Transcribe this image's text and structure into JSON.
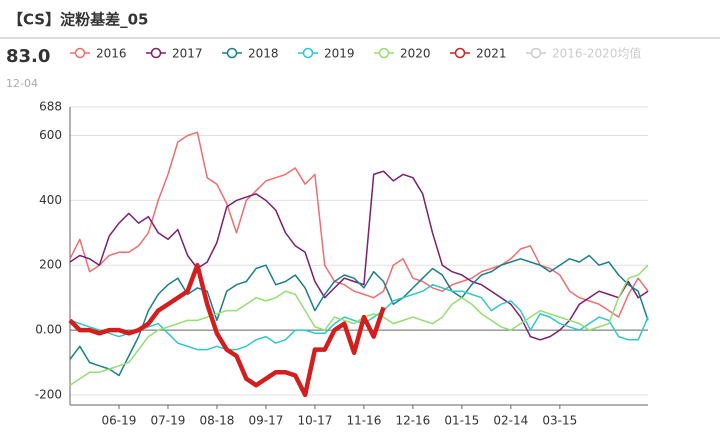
{
  "chart_data": {
    "type": "line",
    "title": "【CS】淀粉基差_05",
    "latest": {
      "value": 83,
      "label": "83.0"
    },
    "latest_date": "12-04",
    "categories": [
      null,
      null,
      null,
      null,
      null,
      "06-19",
      null,
      null,
      null,
      null,
      "07-19",
      null,
      null,
      null,
      null,
      "08-18",
      null,
      null,
      null,
      null,
      "09-17",
      null,
      null,
      null,
      null,
      "10-17",
      null,
      null,
      null,
      null,
      "11-16",
      null,
      null,
      null,
      null,
      "12-16",
      null,
      null,
      null,
      null,
      "01-15",
      null,
      null,
      null,
      null,
      "02-14",
      null,
      null,
      null,
      null,
      "03-15",
      null,
      null,
      null,
      null,
      null,
      null,
      null,
      null,
      null
    ],
    "ylim": [
      -231,
      688
    ],
    "yticks": [
      -200,
      {
        "value": 0,
        "label": "0.00"
      },
      200,
      400,
      600,
      688
    ],
    "grid": true,
    "legend_disabled": [
      "2016-2020均值"
    ],
    "series": [
      {
        "name": "2016",
        "color": "#f26d6d",
        "width": 1.5,
        "values": [
          220,
          280,
          180,
          200,
          230,
          240,
          240,
          260,
          300,
          400,
          480,
          580,
          600,
          610,
          470,
          450,
          390,
          300,
          400,
          430,
          460,
          470,
          480,
          500,
          450,
          480,
          200,
          150,
          140,
          120,
          110,
          100,
          120,
          200,
          220,
          160,
          150,
          130,
          120,
          140,
          150,
          160,
          180,
          190,
          200,
          220,
          250,
          260,
          200,
          190,
          170,
          120,
          100,
          90,
          80,
          60,
          40,
          110,
          160,
          120
        ]
      },
      {
        "name": "2017",
        "color": "#7d1e6e",
        "width": 1.5,
        "values": [
          210,
          230,
          220,
          200,
          290,
          330,
          360,
          330,
          350,
          300,
          280,
          310,
          230,
          190,
          210,
          270,
          380,
          400,
          410,
          420,
          400,
          370,
          300,
          260,
          240,
          150,
          100,
          130,
          160,
          150,
          140,
          480,
          490,
          460,
          480,
          470,
          420,
          300,
          200,
          180,
          170,
          150,
          140,
          120,
          100,
          80,
          40,
          -20,
          -30,
          -20,
          0,
          30,
          80,
          100,
          120,
          110,
          100,
          150,
          100,
          120
        ]
      },
      {
        "name": "2018",
        "color": "#1b7f88",
        "width": 1.5,
        "values": [
          -90,
          -50,
          -100,
          -110,
          -120,
          -140,
          -80,
          -20,
          60,
          110,
          140,
          160,
          110,
          130,
          120,
          30,
          120,
          140,
          150,
          190,
          200,
          140,
          150,
          170,
          130,
          60,
          110,
          150,
          170,
          160,
          130,
          180,
          150,
          80,
          100,
          130,
          160,
          190,
          170,
          120,
          100,
          140,
          170,
          180,
          200,
          210,
          220,
          210,
          200,
          180,
          200,
          220,
          210,
          230,
          200,
          210,
          170,
          140,
          120,
          30
        ]
      },
      {
        "name": "2019",
        "color": "#2ec8c8",
        "width": 1.5,
        "values": [
          30,
          20,
          10,
          0,
          -10,
          -20,
          -10,
          0,
          10,
          20,
          -10,
          -40,
          -50,
          -60,
          -60,
          -50,
          -60,
          -60,
          -50,
          -30,
          -20,
          -40,
          -30,
          0,
          0,
          -10,
          -10,
          20,
          40,
          30,
          20,
          40,
          60,
          90,
          100,
          110,
          120,
          140,
          130,
          120,
          120,
          110,
          100,
          60,
          80,
          90,
          60,
          0,
          50,
          40,
          20,
          10,
          0,
          20,
          40,
          30,
          -20,
          -30,
          -30,
          40
        ]
      },
      {
        "name": "2020",
        "color": "#92e070",
        "width": 1.5,
        "values": [
          -170,
          -150,
          -130,
          -130,
          -120,
          -110,
          -100,
          -60,
          -20,
          0,
          10,
          20,
          30,
          30,
          40,
          50,
          60,
          60,
          80,
          100,
          90,
          100,
          120,
          110,
          60,
          10,
          0,
          40,
          30,
          20,
          40,
          50,
          40,
          20,
          30,
          40,
          30,
          20,
          40,
          80,
          100,
          80,
          50,
          30,
          10,
          0,
          20,
          40,
          60,
          50,
          40,
          30,
          20,
          0,
          10,
          20,
          100,
          160,
          170,
          200
        ]
      },
      {
        "name": "2021",
        "color": "#d41e1e",
        "width": 4.5,
        "values": [
          30,
          0,
          0,
          -10,
          0,
          0,
          -10,
          0,
          20,
          60,
          80,
          100,
          120,
          200,
          80,
          -10,
          -60,
          -80,
          -150,
          -170,
          -150,
          -130,
          -130,
          -140,
          -200,
          -60,
          -60,
          0,
          20,
          -70,
          40,
          -20,
          70,
          null,
          null,
          null,
          null,
          null,
          null,
          null,
          null,
          null,
          null,
          null,
          null,
          null,
          null,
          null,
          null,
          null,
          null,
          null,
          null,
          null,
          null,
          null,
          null,
          null,
          null,
          null
        ]
      }
    ]
  }
}
